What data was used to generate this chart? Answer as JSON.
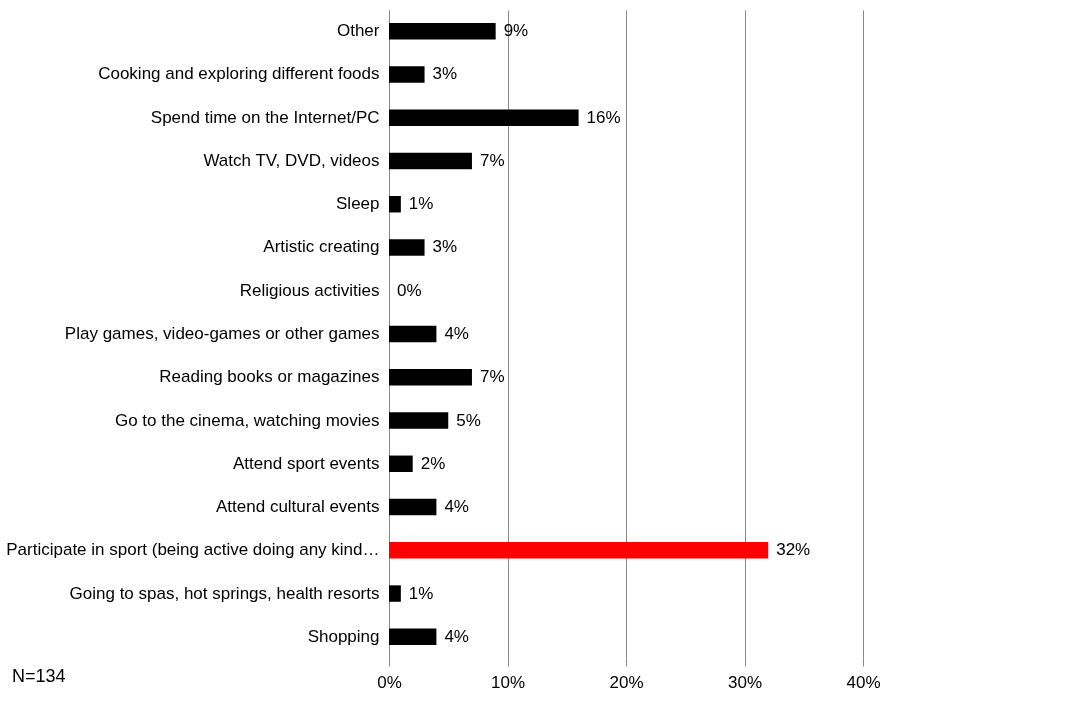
{
  "chart_data": {
    "type": "bar",
    "orientation": "horizontal",
    "categories": [
      "Other",
      "Cooking and exploring different foods",
      "Spend time on the Internet/PC",
      "Watch TV, DVD, videos",
      "Sleep",
      "Artistic creating",
      "Religious activities",
      "Play games, video-games or other games",
      "Reading books or magazines",
      "Go to the cinema, watching movies",
      "Attend sport events",
      "Attend cultural events",
      "Participate in sport (being active doing any kind…",
      "Going to spas, hot springs, health resorts",
      "Shopping"
    ],
    "values": [
      9,
      3,
      16,
      7,
      1,
      3,
      0,
      4,
      7,
      5,
      2,
      4,
      32,
      1,
      4
    ],
    "value_labels": [
      "9%",
      "3%",
      "16%",
      "7%",
      "1%",
      "3%",
      "0%",
      "4%",
      "7%",
      "5%",
      "2%",
      "4%",
      "32%",
      "1%",
      "4%"
    ],
    "colors": [
      "#000000",
      "#000000",
      "#000000",
      "#000000",
      "#000000",
      "#000000",
      "#000000",
      "#000000",
      "#000000",
      "#000000",
      "#000000",
      "#000000",
      "#ff0000",
      "#000000",
      "#000000"
    ],
    "xlim": [
      0,
      40
    ],
    "xticks": [
      {
        "value": 0,
        "label": "0%"
      },
      {
        "value": 10,
        "label": "10%"
      },
      {
        "value": 20,
        "label": "20%"
      },
      {
        "value": 30,
        "label": "30%"
      },
      {
        "value": 40,
        "label": "40%"
      }
    ],
    "grid": "x",
    "annotations": [
      "N=134"
    ]
  }
}
